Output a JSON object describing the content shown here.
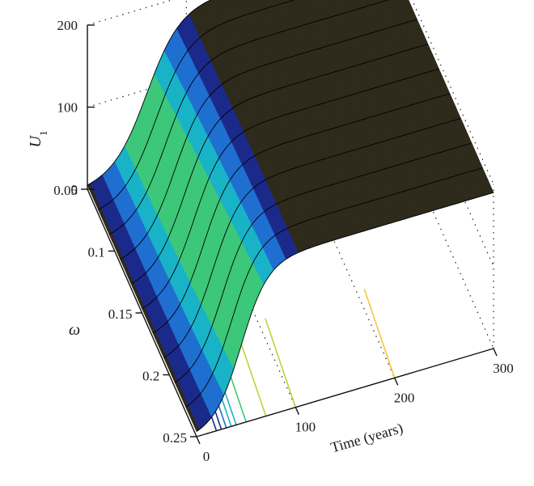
{
  "chart_data": {
    "type": "surface3d",
    "title": "",
    "x_axis": {
      "label": "Time (years)",
      "range": [
        0,
        300
      ],
      "ticks": [
        "0",
        "100",
        "200",
        "300"
      ]
    },
    "y_axis": {
      "label": "ω",
      "range": [
        0.05,
        0.25
      ],
      "ticks": [
        "0.05",
        "0.1",
        "0.15",
        "0.2",
        "0.25"
      ]
    },
    "z_axis": {
      "label": "U",
      "label_subscript": "1",
      "range": [
        0,
        200
      ],
      "ticks": [
        "0",
        "100",
        "200"
      ]
    },
    "surface": {
      "model": "logistic growth over time",
      "z_initial": 0,
      "z_plateau": 190,
      "inflection_time_at_omega_min": 60,
      "inflection_time_at_omega_max": 45,
      "growth_rate_at_omega_min": 0.06,
      "growth_rate_at_omega_max": 0.075,
      "mesh_lines_omega": [
        0.05,
        0.07,
        0.09,
        0.11,
        0.13,
        0.15,
        0.17,
        0.19,
        0.21,
        0.23,
        0.25
      ]
    },
    "surface_color": "#2e2a1c",
    "mesh_line_color": "#000000",
    "colormap": [
      "#1b2a8a",
      "#1f6fd0",
      "#19b3c8",
      "#3cc77a",
      "#b9d43a",
      "#f2c93a"
    ],
    "contour_times": [
      20,
      25,
      30,
      35,
      40,
      50,
      70,
      100,
      200
    ],
    "grid": true,
    "legend": "none"
  }
}
